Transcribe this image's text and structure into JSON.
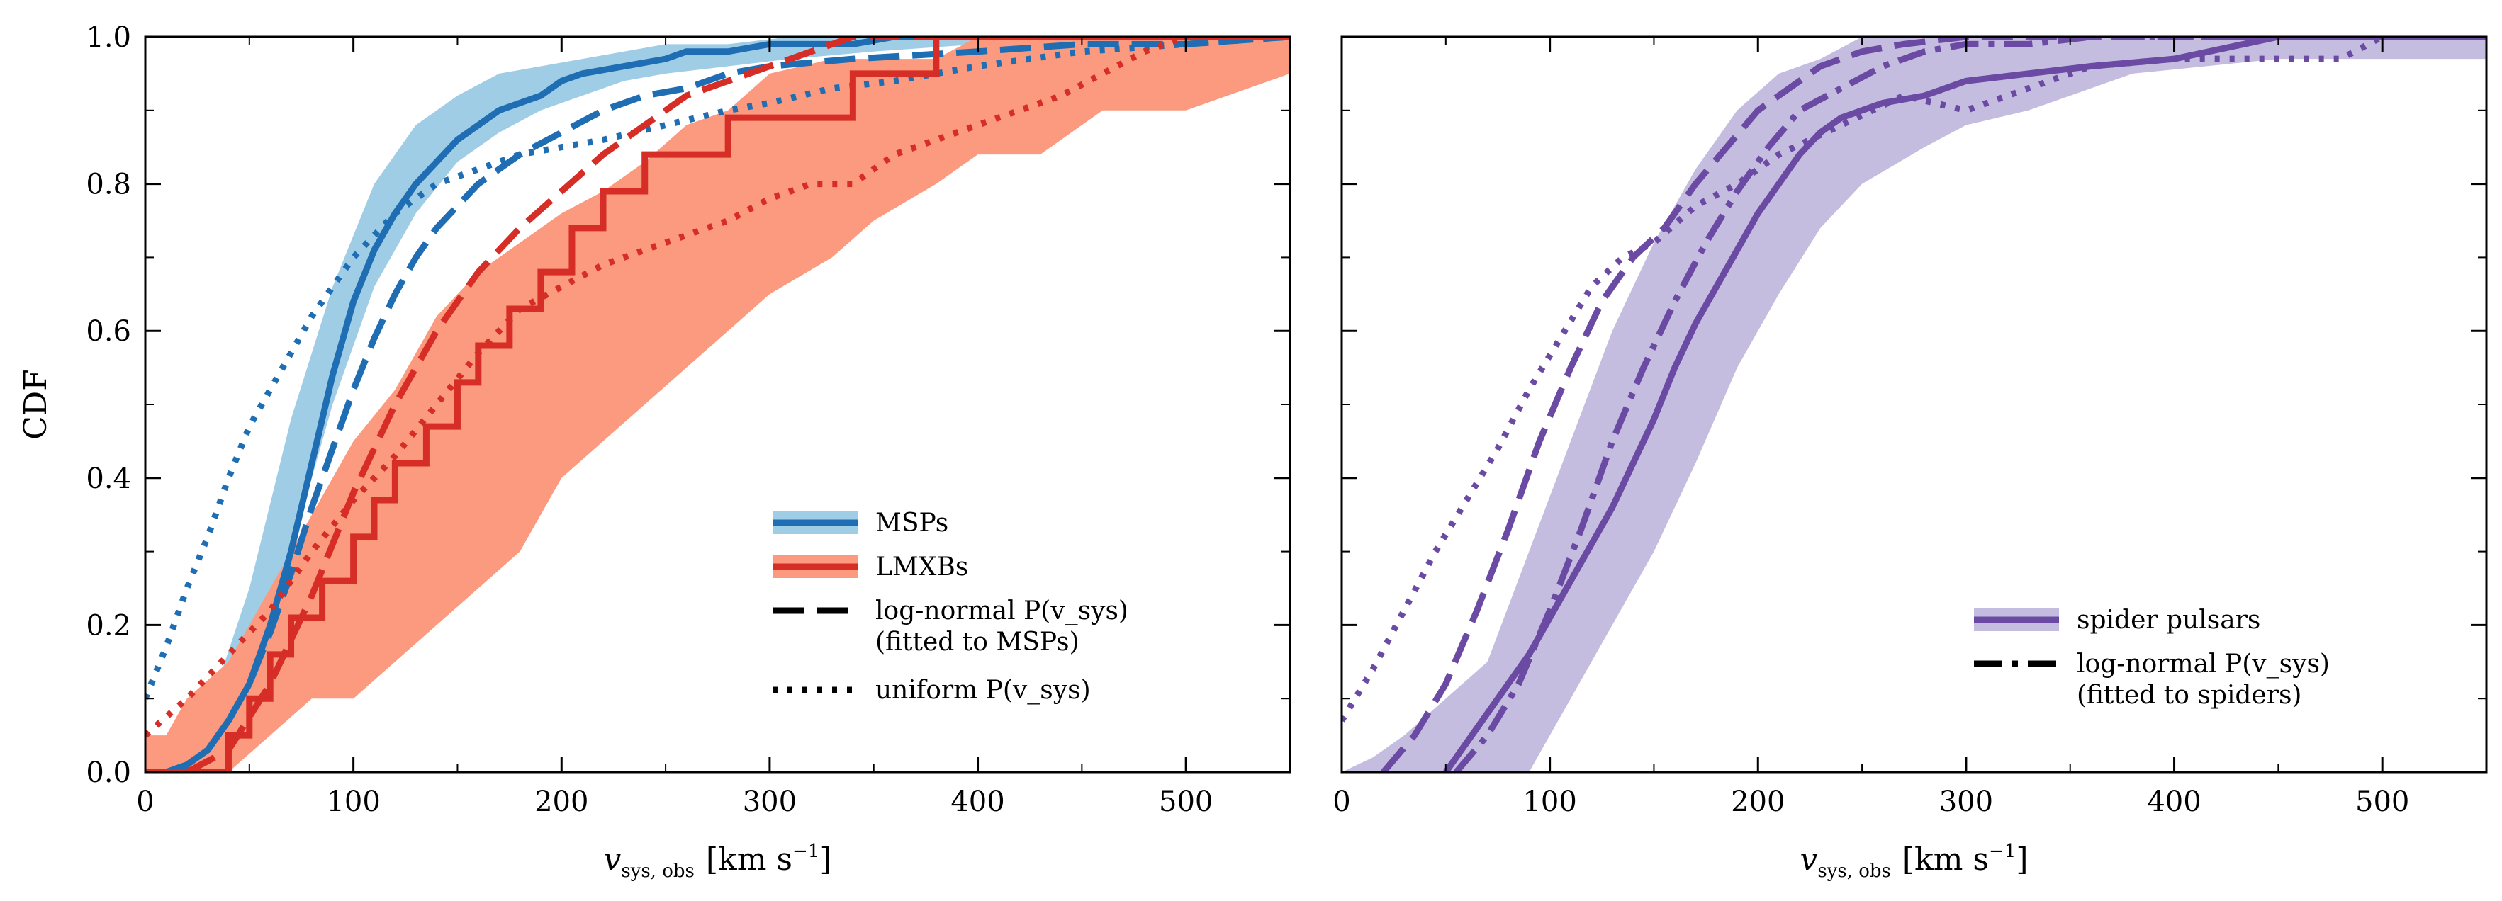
{
  "figure": {
    "ylabel_left": "CDF",
    "xlabel": {
      "var": "v",
      "sub": "sys, obs",
      "unit": "[km s",
      "exp": "−1",
      "close": "]"
    }
  },
  "colors": {
    "msp": "#1f6db3",
    "msp_band": "#9fcde6",
    "lmxb": "#d62d26",
    "lmxb_band": "#fb9a7e",
    "spider": "#6a4aa3",
    "spider_band": "#c4bde0"
  },
  "chart_data": [
    {
      "type": "line",
      "panel": "left",
      "xlim": [
        0,
        550
      ],
      "ylim": [
        0,
        1.0
      ],
      "xticks": [
        0,
        100,
        200,
        300,
        400,
        500
      ],
      "xtick_labels": [
        "0",
        "100",
        "200",
        "300",
        "400",
        "500"
      ],
      "yticks": [
        0.0,
        0.2,
        0.4,
        0.6,
        0.8,
        1.0
      ],
      "ytick_labels": [
        "0.0",
        "0.2",
        "0.4",
        "0.6",
        "0.8",
        "1.0"
      ],
      "xlabel": "v_sys,obs [km s^-1]",
      "ylabel": "CDF",
      "legend_position": "lower-right",
      "series": [
        {
          "id": "msp_band",
          "name": "MSPs",
          "kind": "band",
          "color": "msp_band",
          "x": [
            0,
            10,
            30,
            50,
            70,
            90,
            110,
            130,
            150,
            170,
            190,
            210,
            230,
            250,
            280,
            310,
            350,
            400,
            450,
            550
          ],
          "low": [
            0,
            0,
            0.02,
            0.12,
            0.3,
            0.5,
            0.66,
            0.76,
            0.83,
            0.87,
            0.9,
            0.92,
            0.94,
            0.95,
            0.96,
            0.97,
            0.98,
            0.99,
            0.99,
            0.99
          ],
          "high": [
            0,
            0.02,
            0.08,
            0.25,
            0.48,
            0.66,
            0.8,
            0.88,
            0.92,
            0.95,
            0.96,
            0.97,
            0.98,
            0.99,
            0.99,
            1.0,
            1.0,
            1.0,
            1.0,
            1.0
          ]
        },
        {
          "id": "msp_ecdf",
          "name": "MSPs",
          "kind": "line",
          "style": "solid",
          "color": "msp",
          "x": [
            0,
            15,
            20,
            30,
            40,
            50,
            60,
            70,
            80,
            90,
            100,
            110,
            120,
            130,
            140,
            150,
            160,
            170,
            180,
            190,
            200,
            210,
            230,
            250,
            260,
            280,
            300,
            320,
            340,
            360,
            390,
            550
          ],
          "y": [
            0,
            0,
            0.01,
            0.03,
            0.07,
            0.12,
            0.2,
            0.3,
            0.42,
            0.54,
            0.64,
            0.71,
            0.76,
            0.8,
            0.83,
            0.86,
            0.88,
            0.9,
            0.91,
            0.92,
            0.94,
            0.95,
            0.96,
            0.97,
            0.98,
            0.98,
            0.99,
            0.99,
            0.99,
            1.0,
            1.0,
            1.0
          ]
        },
        {
          "id": "msp_lognorm",
          "name": "log-normal P(v_sys) (fitted to MSPs)",
          "kind": "line",
          "style": "dashed",
          "color": "msp",
          "x": [
            10,
            20,
            30,
            40,
            50,
            60,
            70,
            80,
            90,
            100,
            110,
            120,
            130,
            140,
            150,
            160,
            180,
            200,
            220,
            240,
            260,
            280,
            300,
            340,
            400,
            450,
            500,
            550
          ],
          "y": [
            0,
            0.01,
            0.03,
            0.07,
            0.12,
            0.19,
            0.27,
            0.36,
            0.44,
            0.52,
            0.59,
            0.65,
            0.7,
            0.74,
            0.77,
            0.8,
            0.84,
            0.87,
            0.9,
            0.92,
            0.93,
            0.95,
            0.96,
            0.97,
            0.98,
            0.99,
            0.99,
            1.0
          ]
        },
        {
          "id": "msp_uniform",
          "name": "uniform P(v_sys)",
          "kind": "line",
          "style": "dotted",
          "color": "msp",
          "x": [
            0,
            10,
            20,
            30,
            40,
            50,
            60,
            70,
            80,
            90,
            100,
            110,
            120,
            130,
            140,
            160,
            180,
            200,
            220,
            250,
            280,
            300,
            330,
            360,
            400,
            450,
            500,
            550
          ],
          "y": [
            0.1,
            0.17,
            0.25,
            0.32,
            0.4,
            0.47,
            0.52,
            0.57,
            0.62,
            0.66,
            0.7,
            0.73,
            0.76,
            0.78,
            0.8,
            0.82,
            0.84,
            0.85,
            0.86,
            0.88,
            0.9,
            0.91,
            0.93,
            0.94,
            0.96,
            0.98,
            0.99,
            1.0
          ]
        },
        {
          "id": "lmxb_band",
          "name": "LMXBs",
          "kind": "band",
          "color": "lmxb_band",
          "x": [
            0,
            10,
            20,
            40,
            60,
            80,
            100,
            120,
            140,
            160,
            180,
            200,
            220,
            240,
            260,
            280,
            300,
            330,
            350,
            380,
            400,
            430,
            460,
            500,
            550
          ],
          "low": [
            0,
            0,
            0,
            0,
            0.05,
            0.1,
            0.1,
            0.15,
            0.2,
            0.25,
            0.3,
            0.4,
            0.45,
            0.5,
            0.55,
            0.6,
            0.65,
            0.7,
            0.75,
            0.8,
            0.84,
            0.84,
            0.9,
            0.9,
            0.95
          ],
          "high": [
            0.05,
            0.05,
            0.1,
            0.15,
            0.25,
            0.35,
            0.45,
            0.52,
            0.62,
            0.68,
            0.72,
            0.76,
            0.79,
            0.83,
            0.88,
            0.9,
            0.95,
            0.97,
            0.97,
            0.97,
            1.0,
            1.0,
            1.0,
            1.0,
            1.0
          ]
        },
        {
          "id": "lmxb_ecdf",
          "name": "LMXBs",
          "kind": "step",
          "style": "solid",
          "color": "lmxb",
          "x": [
            0,
            40,
            40,
            50,
            50,
            60,
            60,
            70,
            70,
            85,
            85,
            100,
            100,
            110,
            110,
            120,
            120,
            135,
            135,
            150,
            150,
            160,
            160,
            175,
            175,
            190,
            190,
            205,
            205,
            220,
            220,
            240,
            240,
            260,
            260,
            280,
            280,
            300,
            300,
            320,
            320,
            340,
            340,
            375,
            375,
            380,
            380,
            460,
            460,
            550
          ],
          "y": [
            0,
            0,
            0.05,
            0.05,
            0.1,
            0.1,
            0.16,
            0.16,
            0.21,
            0.21,
            0.26,
            0.26,
            0.32,
            0.32,
            0.37,
            0.37,
            0.42,
            0.42,
            0.47,
            0.47,
            0.53,
            0.53,
            0.58,
            0.58,
            0.63,
            0.63,
            0.68,
            0.68,
            0.74,
            0.74,
            0.79,
            0.79,
            0.84,
            0.84,
            0.84,
            0.84,
            0.89,
            0.89,
            0.89,
            0.89,
            0.89,
            0.89,
            0.95,
            0.95,
            0.95,
            0.95,
            1.0,
            1.0,
            1.0,
            1.0
          ]
        },
        {
          "id": "lmxb_lognorm",
          "name": "log-normal P(v_sys) (fitted to MSPs)",
          "kind": "line",
          "style": "dashed",
          "color": "lmxb",
          "x": [
            20,
            40,
            60,
            80,
            100,
            120,
            140,
            160,
            180,
            200,
            220,
            240,
            260,
            280,
            300,
            320,
            340,
            360,
            400,
            550
          ],
          "y": [
            0,
            0.03,
            0.12,
            0.24,
            0.38,
            0.5,
            0.6,
            0.68,
            0.74,
            0.79,
            0.84,
            0.88,
            0.92,
            0.94,
            0.96,
            0.98,
            1.0,
            1.0,
            1.0,
            1.0
          ]
        },
        {
          "id": "lmxb_uniform",
          "name": "uniform P(v_sys)",
          "kind": "line",
          "style": "dotted",
          "color": "lmxb",
          "x": [
            0,
            20,
            40,
            60,
            80,
            100,
            120,
            140,
            160,
            180,
            200,
            220,
            240,
            260,
            280,
            300,
            320,
            340,
            360,
            380,
            400,
            420,
            440,
            460,
            480,
            500
          ],
          "y": [
            0.05,
            0.1,
            0.16,
            0.22,
            0.3,
            0.37,
            0.43,
            0.5,
            0.57,
            0.63,
            0.66,
            0.69,
            0.71,
            0.73,
            0.75,
            0.78,
            0.8,
            0.8,
            0.84,
            0.86,
            0.88,
            0.9,
            0.92,
            0.95,
            0.98,
            1.0
          ]
        }
      ],
      "legend": [
        {
          "label": "MSPs",
          "sample": "band+solid",
          "color": "msp"
        },
        {
          "label": "LMXBs",
          "sample": "band+solid",
          "color": "lmxb"
        },
        {
          "label": "log-normal P(v_sys)",
          "label2": "(fitted to MSPs)",
          "sample": "dashed",
          "color": "black"
        },
        {
          "label": "uniform P(v_sys)",
          "sample": "dotted",
          "color": "black"
        }
      ]
    },
    {
      "type": "line",
      "panel": "right",
      "xlim": [
        0,
        550
      ],
      "ylim": [
        0,
        1.0
      ],
      "xticks": [
        0,
        100,
        200,
        300,
        400,
        500
      ],
      "xtick_labels": [
        "0",
        "100",
        "200",
        "300",
        "400",
        "500"
      ],
      "yticks": [
        0.0,
        0.2,
        0.4,
        0.6,
        0.8,
        1.0
      ],
      "xlabel": "v_sys,obs [km s^-1]",
      "legend_position": "lower-right",
      "series": [
        {
          "id": "spider_band",
          "name": "spider pulsars",
          "kind": "band",
          "color": "spider_band",
          "x": [
            0,
            15,
            30,
            50,
            70,
            90,
            110,
            130,
            150,
            170,
            190,
            210,
            230,
            250,
            280,
            300,
            330,
            350,
            380,
            450,
            500,
            550
          ],
          "low": [
            0,
            0,
            0,
            0,
            0,
            0,
            0.1,
            0.2,
            0.3,
            0.42,
            0.55,
            0.65,
            0.74,
            0.8,
            0.85,
            0.88,
            0.9,
            0.92,
            0.95,
            0.97,
            0.97,
            0.97
          ],
          "high": [
            0,
            0.02,
            0.05,
            0.1,
            0.15,
            0.3,
            0.45,
            0.6,
            0.72,
            0.82,
            0.9,
            0.95,
            0.97,
            1.0,
            1.0,
            1.0,
            1.0,
            1.0,
            1.0,
            1.0,
            1.0,
            1.0
          ]
        },
        {
          "id": "spider_ecdf",
          "name": "spider pulsars",
          "kind": "line",
          "style": "solid",
          "color": "spider",
          "x": [
            50,
            60,
            70,
            80,
            90,
            100,
            110,
            120,
            130,
            140,
            150,
            160,
            170,
            180,
            190,
            200,
            210,
            220,
            230,
            240,
            260,
            280,
            300,
            330,
            360,
            400,
            450,
            550
          ],
          "y": [
            0,
            0.04,
            0.08,
            0.12,
            0.16,
            0.21,
            0.26,
            0.31,
            0.36,
            0.42,
            0.48,
            0.55,
            0.61,
            0.66,
            0.71,
            0.76,
            0.8,
            0.84,
            0.87,
            0.89,
            0.91,
            0.92,
            0.94,
            0.95,
            0.96,
            0.97,
            1.0,
            1.0
          ]
        },
        {
          "id": "spider_lognorm",
          "name": "log-normal P(v_sys) (fitted to spiders)",
          "kind": "line",
          "style": "dashdot",
          "color": "spider",
          "x": [
            55,
            70,
            85,
            100,
            115,
            130,
            145,
            160,
            175,
            190,
            205,
            220,
            240,
            260,
            280,
            300,
            330,
            360,
            400,
            550
          ],
          "y": [
            0,
            0.05,
            0.12,
            0.22,
            0.33,
            0.45,
            0.55,
            0.64,
            0.72,
            0.79,
            0.85,
            0.9,
            0.93,
            0.96,
            0.98,
            0.99,
            0.99,
            1.0,
            1.0,
            1.0
          ]
        },
        {
          "id": "spider_lognorm2",
          "name": "log-normal P(v_sys)",
          "kind": "line",
          "style": "dashed",
          "color": "spider",
          "x": [
            20,
            35,
            50,
            65,
            80,
            95,
            110,
            125,
            140,
            155,
            170,
            185,
            200,
            215,
            230,
            250,
            270,
            300,
            340,
            400,
            550
          ],
          "y": [
            0,
            0.05,
            0.12,
            0.22,
            0.33,
            0.45,
            0.55,
            0.64,
            0.7,
            0.74,
            0.8,
            0.85,
            0.9,
            0.93,
            0.96,
            0.98,
            0.99,
            1.0,
            1.0,
            1.0,
            1.0
          ]
        },
        {
          "id": "spider_uniform",
          "name": "uniform P(v_sys)",
          "kind": "line",
          "style": "dotted",
          "color": "spider",
          "x": [
            0,
            15,
            30,
            45,
            60,
            75,
            90,
            105,
            120,
            135,
            150,
            170,
            190,
            210,
            240,
            270,
            300,
            330,
            360,
            400,
            450,
            480,
            500
          ],
          "y": [
            0.07,
            0.14,
            0.22,
            0.3,
            0.37,
            0.44,
            0.52,
            0.59,
            0.66,
            0.7,
            0.72,
            0.77,
            0.8,
            0.84,
            0.88,
            0.92,
            0.9,
            0.93,
            0.96,
            0.97,
            0.97,
            0.97,
            1.0
          ]
        }
      ],
      "legend": [
        {
          "label": "spider pulsars",
          "sample": "band+solid",
          "color": "spider"
        },
        {
          "label": "log-normal P(v_sys)",
          "label2": "(fitted to spiders)",
          "sample": "dashdot",
          "color": "black"
        }
      ]
    }
  ]
}
